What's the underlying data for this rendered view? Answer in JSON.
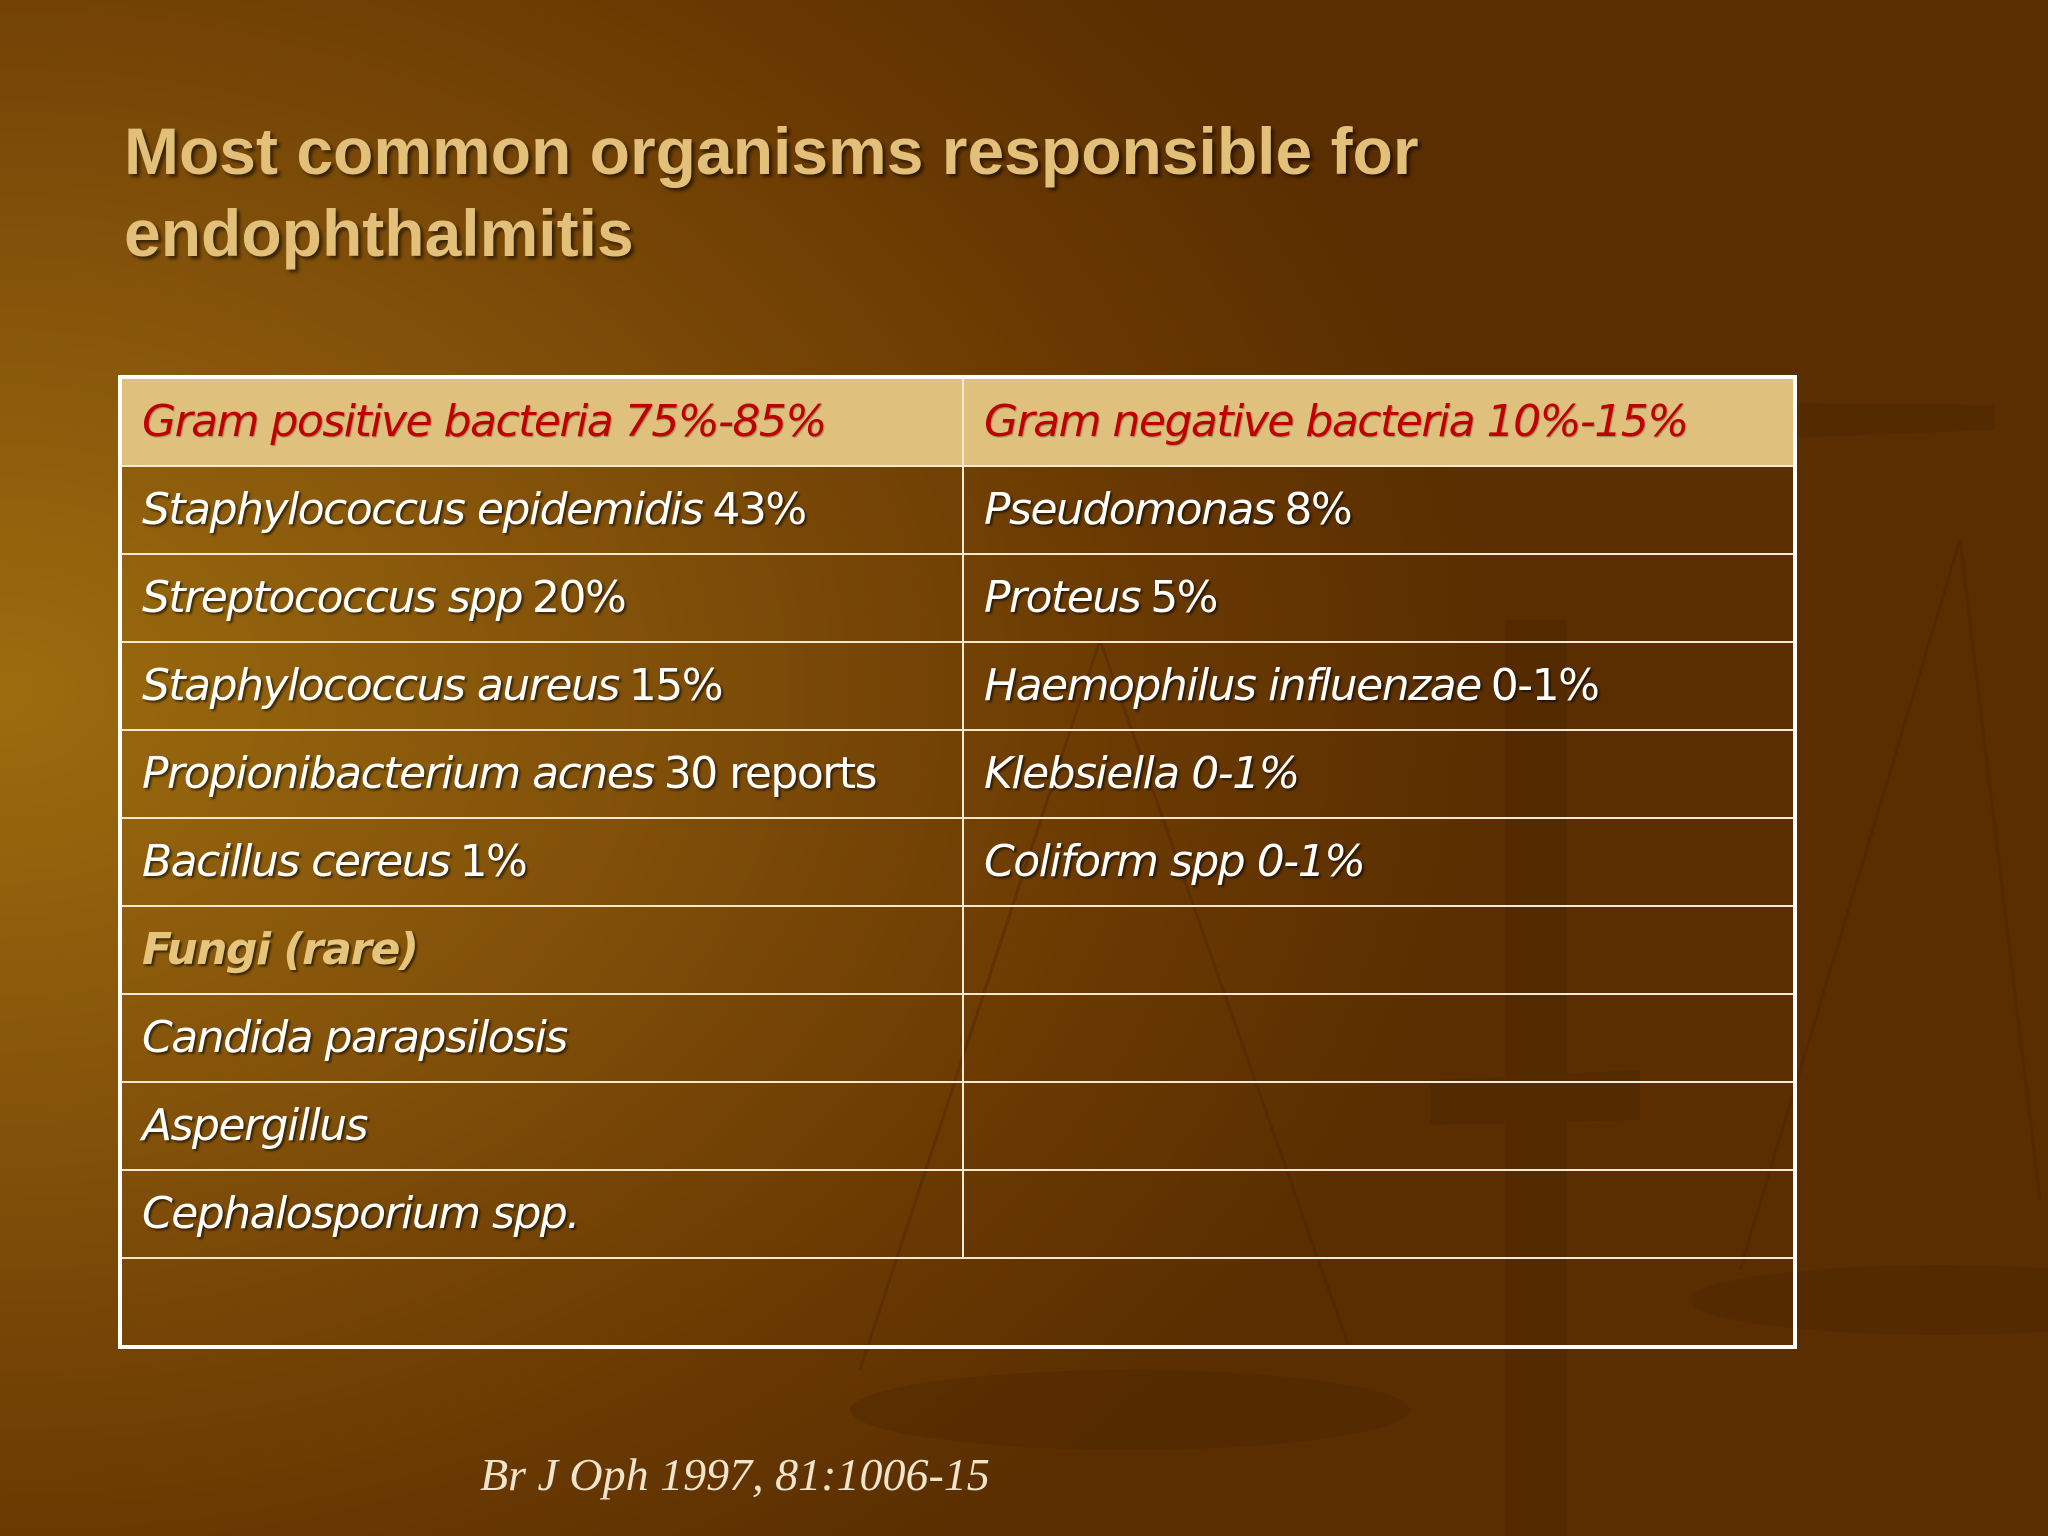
{
  "title": "Most common organisms responsible for endophthalmitis",
  "table": {
    "header": [
      "Gram positive bacteria 75%-85%",
      "Gram negative bacteria 10%-15%"
    ],
    "rows": [
      [
        {
          "name": "Staphylococcus epidemidis",
          "note": "43%"
        },
        {
          "name": "Pseudomonas",
          "note": "8%"
        }
      ],
      [
        {
          "name": "Streptococcus spp",
          "note": "20%"
        },
        {
          "name": "Proteus",
          "note": "5%"
        }
      ],
      [
        {
          "name": "Staphylococcus aureus",
          "note": "15%"
        },
        {
          "name": "Haemophilus influenzae",
          "note": "0-1%"
        }
      ],
      [
        {
          "name": "Propionibacterium acnes",
          "note": "30 reports"
        },
        {
          "name": "Klebsiella 0-1%"
        }
      ],
      [
        {
          "name": "Bacillus cereus",
          "note": "1%"
        },
        {
          "name": "Coliform spp 0-1%"
        }
      ]
    ],
    "fungi": {
      "heading": "Fungi (rare)",
      "rows": [
        "Candida parapsilosis",
        "Aspergillus",
        "Cephalosporium spp."
      ]
    }
  },
  "citation": "Br J Oph 1997, 81:1006-15"
}
